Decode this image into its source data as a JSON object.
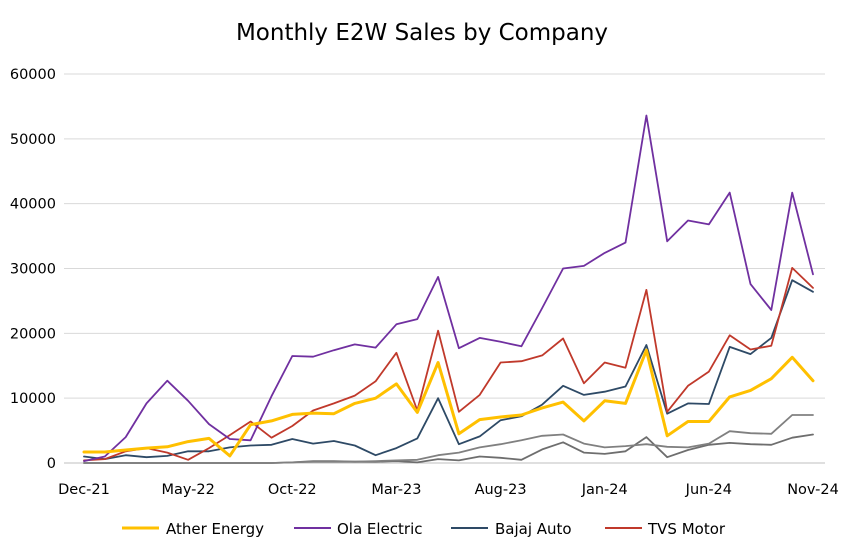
{
  "chart_data": {
    "type": "line",
    "title": "Monthly E2W Sales by Company",
    "xlabel": "",
    "ylabel": "",
    "ylim": [
      0,
      60000
    ],
    "yticks": [
      0,
      10000,
      20000,
      30000,
      40000,
      50000,
      60000
    ],
    "ytick_labels": [
      "0",
      "10000",
      "20000",
      "30000",
      "40000",
      "50000",
      "60000"
    ],
    "x": [
      "Dec-21",
      "Jan-22",
      "Feb-22",
      "Mar-22",
      "Apr-22",
      "May-22",
      "Jun-22",
      "Jul-22",
      "Aug-22",
      "Sep-22",
      "Oct-22",
      "Nov-22",
      "Dec-22",
      "Jan-23",
      "Feb-23",
      "Mar-23",
      "Apr-23",
      "May-23",
      "Jun-23",
      "Jul-23",
      "Aug-23",
      "Sep-23",
      "Oct-23",
      "Nov-23",
      "Dec-23",
      "Jan-24",
      "Feb-24",
      "Mar-24",
      "Apr-24",
      "May-24",
      "Jun-24",
      "Jul-24",
      "Aug-24",
      "Sep-24",
      "Oct-24",
      "Nov-24"
    ],
    "xtick_labels": [
      "Dec-21",
      "May-22",
      "Oct-22",
      "Mar-23",
      "Aug-23",
      "Jan-24",
      "Jun-24",
      "Nov-24"
    ],
    "xtick_index": [
      0,
      5,
      10,
      15,
      20,
      25,
      30,
      35
    ],
    "grid": "horizontal",
    "legend_position": "bottom",
    "series": [
      {
        "name": "Ather Energy",
        "color": "#ffc000",
        "values": [
          1700,
          1700,
          2000,
          2300,
          2500,
          3300,
          3800,
          1100,
          5900,
          6500,
          7500,
          7700,
          7600,
          9200,
          10000,
          12200,
          7800,
          15500,
          4500,
          6700,
          7100,
          7400,
          8500,
          9400,
          6500,
          9600,
          9200,
          17400,
          4200,
          6400,
          6400,
          10200,
          11200,
          13000,
          16300,
          12700
        ]
      },
      {
        "name": "Ola Electric",
        "color": "#7030a0",
        "values": [
          300,
          1000,
          4000,
          9200,
          12700,
          9600,
          6000,
          3700,
          3500,
          10300,
          16500,
          16400,
          17400,
          18300,
          17800,
          21400,
          22200,
          28700,
          17700,
          19300,
          18700,
          18000,
          23900,
          30000,
          30400,
          32400,
          34000,
          53600,
          34200,
          37400,
          36800,
          41700,
          27600,
          23600,
          41700,
          29100
        ]
      },
      {
        "name": "Bajaj Auto",
        "color": "#2e4a66",
        "values": [
          1000,
          600,
          1200,
          900,
          1100,
          1800,
          1800,
          2400,
          2700,
          2800,
          3700,
          3000,
          3400,
          2700,
          1200,
          2300,
          3800,
          10000,
          2900,
          4100,
          6600,
          7200,
          9000,
          11900,
          10500,
          11000,
          11800,
          18200,
          7600,
          9200,
          9100,
          17900,
          16800,
          19300,
          28200,
          26400
        ]
      },
      {
        "name": "TVS Motor",
        "color": "#c0392b",
        "values": [
          400,
          600,
          1800,
          2300,
          1600,
          500,
          2300,
          4300,
          6400,
          3900,
          5700,
          8100,
          9200,
          10400,
          12600,
          17000,
          8100,
          20400,
          7900,
          10500,
          15500,
          15700,
          16600,
          19200,
          12300,
          15500,
          14700,
          26700,
          7900,
          11900,
          14100,
          19700,
          17500,
          18100,
          30100,
          27000
        ]
      },
      {
        "name": "",
        "color": "#808080",
        "values": [
          0,
          0,
          0,
          0,
          0,
          0,
          0,
          0,
          0,
          0,
          100,
          200,
          200,
          200,
          300,
          400,
          500,
          1200,
          1600,
          2400,
          2900,
          3500,
          4200,
          4400,
          3000,
          2400,
          2600,
          2900,
          2500,
          2400,
          3000,
          4900,
          4600,
          4500,
          7400,
          7400
        ]
      },
      {
        "name": "",
        "color": "#6e6e6e",
        "values": [
          0,
          0,
          0,
          0,
          0,
          0,
          0,
          0,
          0,
          0,
          100,
          300,
          300,
          200,
          200,
          300,
          100,
          600,
          400,
          1000,
          800,
          500,
          2100,
          3200,
          1600,
          1400,
          1800,
          4000,
          900,
          2000,
          2800,
          3100,
          2900,
          2800,
          3900,
          4400
        ]
      }
    ],
    "annotations": []
  }
}
